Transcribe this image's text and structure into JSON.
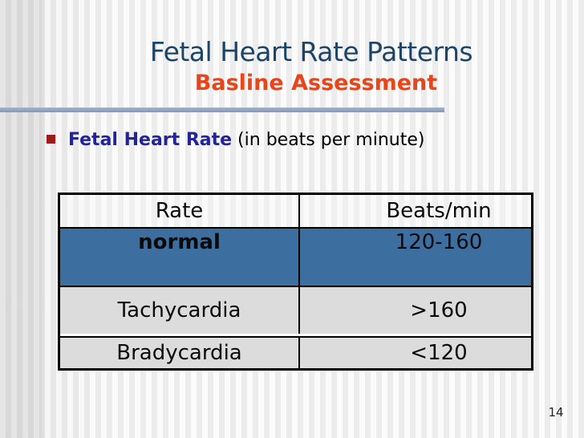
{
  "slide": {
    "title": "Fetal Heart Rate Patterns",
    "subtitle": "Basline Assessment",
    "bullet": {
      "lead": "Fetal Heart Rate",
      "rest": " (in beats per minute)"
    },
    "table": {
      "columns": [
        "Rate",
        "Beats/min"
      ],
      "rows": [
        {
          "rate": "normal",
          "beats": "120-160",
          "highlight": true
        },
        {
          "rate": "Tachycardia",
          "beats": ">160",
          "highlight": false
        },
        {
          "rate": "Bradycardia",
          "beats": "<120",
          "highlight": false
        }
      ]
    },
    "page_number": "14",
    "colors": {
      "title_text": "#1c4467",
      "subtitle_text": "#e8461a",
      "bullet_marker": "#9e1b1b",
      "bullet_lead_text": "#23239a",
      "divider_line": "#8fa6bf",
      "table_border": "#000000",
      "table_highlight_row": "#3c6fa0",
      "table_gray_row": "#dcdcdc",
      "background_stripe_light": "#fbfbfb",
      "background_stripe_dark": "#ececec"
    }
  }
}
